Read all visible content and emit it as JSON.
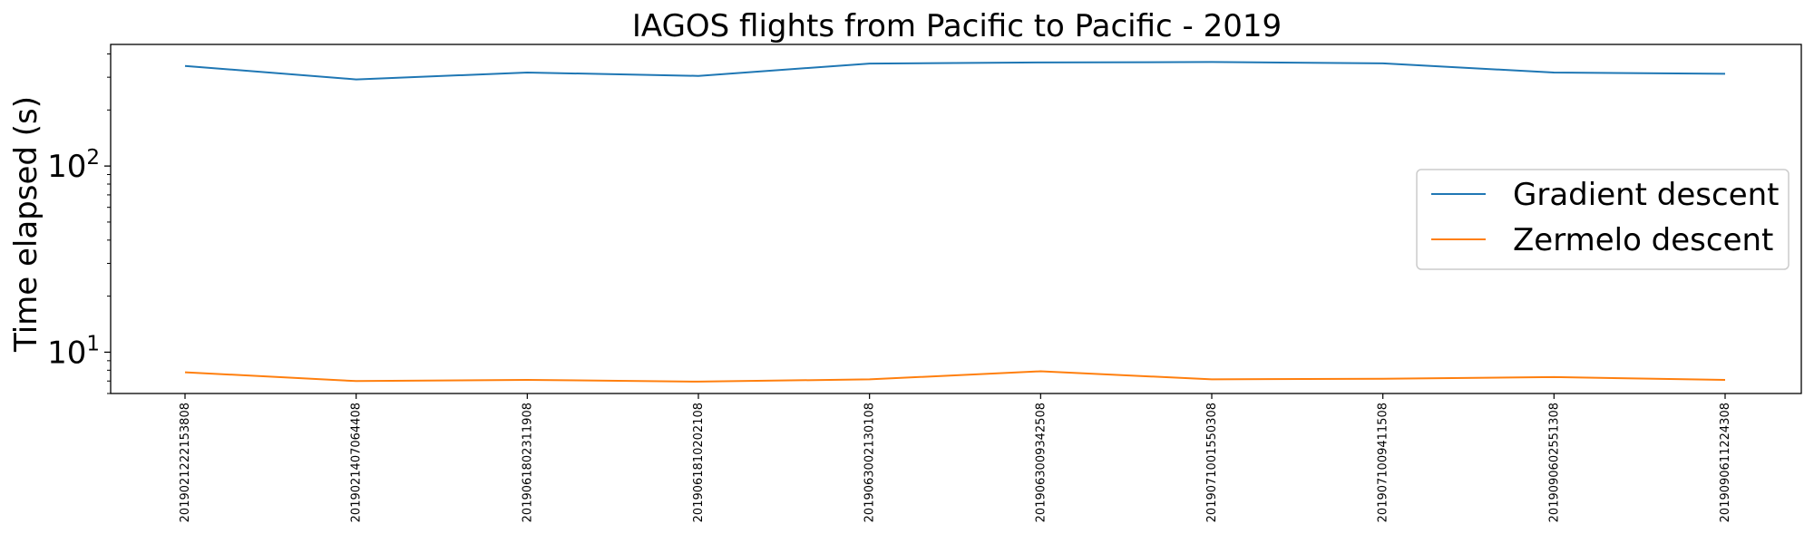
{
  "chart_data": {
    "type": "line",
    "title": "IAGOS flights from Pacific to Pacific - 2019",
    "xlabel": "",
    "ylabel": "Time elapsed (s)",
    "yscale": "log",
    "ylim": [
      6,
      450
    ],
    "y_ticks": [
      {
        "value": 10,
        "base": "10",
        "exp": "1"
      },
      {
        "value": 100,
        "base": "10",
        "exp": "2"
      }
    ],
    "categories": [
      "2019021222153808",
      "2019021407064408",
      "2019061802311908",
      "2019061810202108",
      "2019063002130108",
      "2019063009342508",
      "2019071001550308",
      "2019071009411508",
      "2019090602551308",
      "2019090611224308"
    ],
    "series": [
      {
        "name": "Gradient descent",
        "color": "#1f77b4",
        "values": [
          345,
          292,
          318,
          305,
          355,
          360,
          362,
          356,
          318,
          313
        ]
      },
      {
        "name": "Zermelo descent",
        "color": "#ff7f0e",
        "values": [
          7.8,
          7.0,
          7.1,
          6.95,
          7.15,
          7.9,
          7.15,
          7.2,
          7.35,
          7.1
        ]
      }
    ],
    "grid": false,
    "legend_position": "center-right"
  }
}
